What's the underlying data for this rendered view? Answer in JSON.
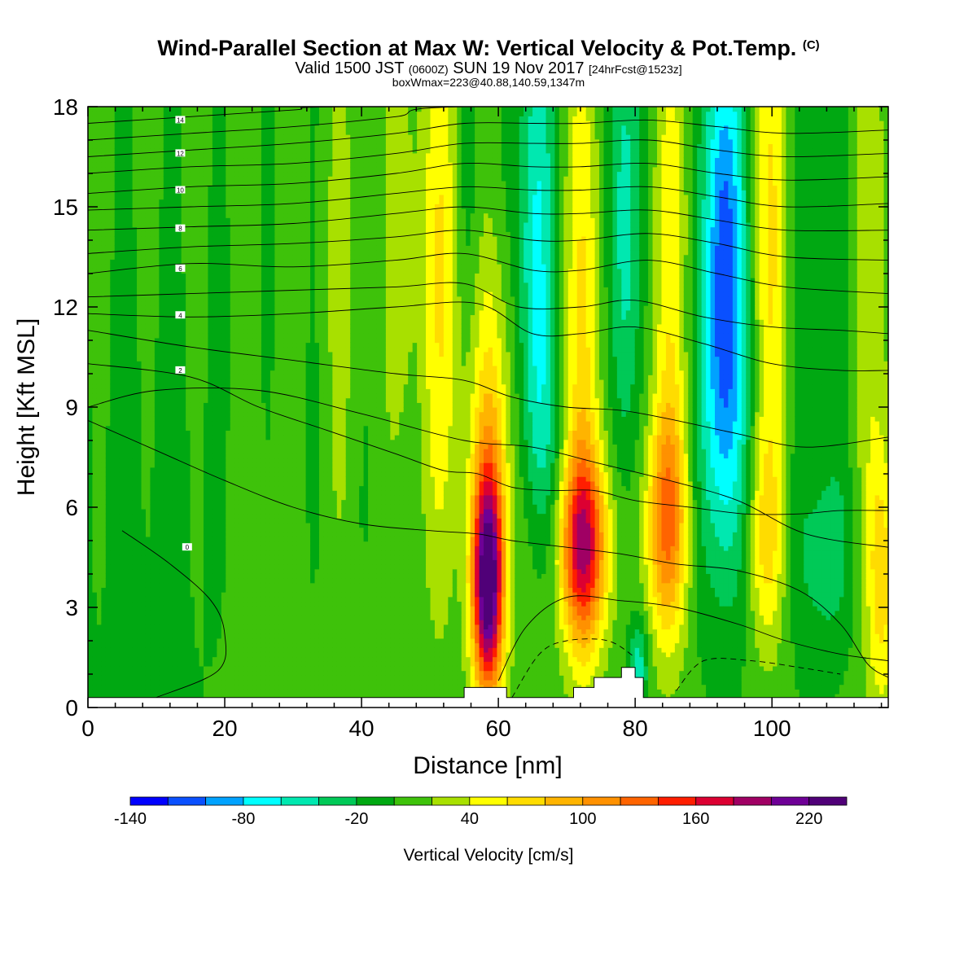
{
  "header": {
    "title": "Wind-Parallel Section at Max W: Vertical Velocity & Pot.Temp.",
    "copyright": "(C)",
    "valid_prefix": "Valid 1500 JST",
    "valid_zulu": "(0600Z)",
    "valid_date": "SUN 19 Nov 2017",
    "forecast": "[24hrFcst@1523z]",
    "box_info": "boxWmax=223@40.88,140.59,1347m"
  },
  "chart_data": {
    "type": "heatmap",
    "xlabel": "Distance [nm]",
    "ylabel": "Height [Kft MSL]",
    "xlim": [
      0,
      117
    ],
    "ylim": [
      0,
      18
    ],
    "x_ticks": [
      "0",
      "20",
      "40",
      "60",
      "80",
      "100"
    ],
    "y_ticks": [
      "0",
      "3",
      "6",
      "9",
      "12",
      "15",
      "18"
    ],
    "colorbar": {
      "title": "Vertical Velocity [cm/s]",
      "labels": [
        "-140",
        "-80",
        "-20",
        "40",
        "100",
        "160",
        "220"
      ],
      "range": [
        -140,
        240
      ],
      "step": 20,
      "colors": [
        "#0000ff",
        "#0a50ff",
        "#00a2ff",
        "#00ffff",
        "#00e8b0",
        "#00c957",
        "#00a812",
        "#3ec20a",
        "#a8e000",
        "#ffff00",
        "#ffdc00",
        "#ffb400",
        "#ff9100",
        "#ff6400",
        "#ff1e00",
        "#dc0032",
        "#a00064",
        "#6e0096",
        "#500078"
      ]
    },
    "terrain": [
      [
        0,
        0.3
      ],
      [
        55,
        0.3
      ],
      [
        55,
        0.6
      ],
      [
        60,
        0.6
      ],
      [
        60,
        0.6
      ],
      [
        61.2,
        0.6
      ],
      [
        61.2,
        0.3
      ],
      [
        71,
        0.3
      ],
      [
        71,
        0.6
      ],
      [
        74,
        0.6
      ],
      [
        74,
        0.9
      ],
      [
        78,
        0.9
      ],
      [
        78,
        1.2
      ],
      [
        80,
        1.2
      ],
      [
        80,
        0.9
      ],
      [
        81.2,
        0.9
      ],
      [
        81.2,
        0.3
      ],
      [
        117,
        0.3
      ]
    ],
    "w_sources": [
      {
        "x": 58.5,
        "z": 3.7,
        "sx": 1.6,
        "sz": 2.4,
        "a": 235
      },
      {
        "x": 59,
        "z": 8.5,
        "sx": 2.2,
        "sz": 3.5,
        "a": 60
      },
      {
        "x": 72.5,
        "z": 4.8,
        "sx": 2.5,
        "sz": 2.0,
        "a": 150
      },
      {
        "x": 72.5,
        "z": 11,
        "sx": 2.0,
        "sz": 7.0,
        "a": 55
      },
      {
        "x": 84.5,
        "z": 5.5,
        "sx": 2.2,
        "sz": 2.4,
        "a": 105
      },
      {
        "x": 85,
        "z": 13,
        "sx": 2.0,
        "sz": 6.0,
        "a": 45
      },
      {
        "x": 52,
        "z": 13,
        "sx": 2.2,
        "sz": 6.5,
        "a": 55
      },
      {
        "x": 46,
        "z": 14,
        "sx": 1.6,
        "sz": 5.0,
        "a": 30
      },
      {
        "x": 100,
        "z": 14,
        "sx": 2.0,
        "sz": 6.0,
        "a": 55
      },
      {
        "x": 99,
        "z": 5.0,
        "sx": 2.0,
        "sz": 2.2,
        "a": 50
      },
      {
        "x": 116,
        "z": 4.0,
        "sx": 1.6,
        "sz": 3.0,
        "a": 70
      },
      {
        "x": 115,
        "z": 14,
        "sx": 2.0,
        "sz": 5.0,
        "a": 30
      },
      {
        "x": 37,
        "z": 13,
        "sx": 2.0,
        "sz": 6.0,
        "a": 18
      },
      {
        "x": 24,
        "z": 4.0,
        "sx": 4.0,
        "sz": 5.0,
        "a": 12
      },
      {
        "x": 65,
        "z": 4.0,
        "sx": 2.0,
        "sz": 3.0,
        "a": 15
      },
      {
        "x": 65.5,
        "z": 13.5,
        "sx": 1.8,
        "sz": 6.0,
        "a": -75
      },
      {
        "x": 78.5,
        "z": 14.5,
        "sx": 1.6,
        "sz": 5.5,
        "a": -62
      },
      {
        "x": 80.5,
        "z": 1.2,
        "sx": 1.0,
        "sz": 1.0,
        "a": -60
      },
      {
        "x": 93,
        "z": 14.5,
        "sx": 2.0,
        "sz": 5.0,
        "a": -105
      },
      {
        "x": 93,
        "z": 8.5,
        "sx": 2.8,
        "sz": 4.0,
        "a": -55
      },
      {
        "x": 55.5,
        "z": 15.5,
        "sx": 1.4,
        "sz": 4.0,
        "a": -25
      },
      {
        "x": 106,
        "z": 12,
        "sx": 2.5,
        "sz": 8.0,
        "a": -20
      },
      {
        "x": 10,
        "z": 5.5,
        "sx": 12.0,
        "sz": 6.0,
        "a": -12
      },
      {
        "x": 108,
        "z": 4.5,
        "sx": 3.0,
        "sz": 1.8,
        "a": -30
      },
      {
        "x": 67,
        "z": 8.0,
        "sx": 2.0,
        "sz": 2.5,
        "a": -20
      }
    ],
    "isentropes": [
      {
        "label": "0",
        "pts": [
          [
            5,
            5.3
          ],
          [
            12,
            4.3
          ],
          [
            18,
            3.2
          ],
          [
            20,
            2.2
          ],
          [
            19,
            1.1
          ],
          [
            10,
            0.3
          ]
        ]
      },
      {
        "label": "",
        "pts": [
          [
            0,
            8.6
          ],
          [
            10,
            7.7
          ],
          [
            20,
            6.8
          ],
          [
            30,
            6.0
          ],
          [
            40,
            5.5
          ],
          [
            50,
            5.3
          ],
          [
            57,
            5.2
          ],
          [
            62,
            5.0
          ],
          [
            70,
            4.8
          ],
          [
            78,
            4.6
          ],
          [
            86,
            4.3
          ],
          [
            95,
            4.1
          ],
          [
            104,
            3.5
          ],
          [
            110,
            2.5
          ],
          [
            114,
            1.3
          ],
          [
            117,
            0.9
          ]
        ]
      },
      {
        "label": "",
        "pts": [
          [
            60,
            0.8
          ],
          [
            64,
            2.4
          ],
          [
            70,
            3.3
          ],
          [
            78,
            3.2
          ],
          [
            86,
            3.0
          ],
          [
            95,
            2.5
          ],
          [
            102,
            2.0
          ],
          [
            110,
            1.6
          ],
          [
            117,
            1.4
          ]
        ]
      },
      {
        "label": "2",
        "pts": [
          [
            0,
            10.3
          ],
          [
            15,
            9.9
          ],
          [
            25,
            9.0
          ],
          [
            35,
            8.3
          ],
          [
            45,
            7.6
          ],
          [
            52,
            7.1
          ],
          [
            57,
            7.0
          ],
          [
            62,
            6.6
          ],
          [
            68,
            6.5
          ],
          [
            74,
            6.5
          ],
          [
            80,
            6.2
          ],
          [
            88,
            6.0
          ],
          [
            96,
            5.8
          ],
          [
            104,
            5.8
          ],
          [
            110,
            5.9
          ],
          [
            117,
            5.9
          ]
        ]
      },
      {
        "label": "",
        "pts": [
          [
            0,
            9.0
          ],
          [
            10,
            9.5
          ],
          [
            25,
            9.5
          ],
          [
            40,
            8.8
          ],
          [
            55,
            8.0
          ],
          [
            65,
            7.8
          ],
          [
            75,
            7.3
          ],
          [
            85,
            6.8
          ],
          [
            95,
            6.2
          ],
          [
            105,
            5.2
          ],
          [
            117,
            4.8
          ]
        ]
      },
      {
        "label": "",
        "pts": [
          [
            0,
            11.3
          ],
          [
            15,
            10.8
          ],
          [
            30,
            10.4
          ],
          [
            45,
            10.0
          ],
          [
            55,
            9.8
          ],
          [
            62,
            9.3
          ],
          [
            70,
            9.0
          ],
          [
            78,
            8.9
          ],
          [
            86,
            8.6
          ],
          [
            95,
            8.2
          ],
          [
            105,
            7.8
          ],
          [
            117,
            8.1
          ]
        ]
      },
      {
        "label": "4",
        "pts": [
          [
            0,
            11.8
          ],
          [
            15,
            11.7
          ],
          [
            30,
            11.8
          ],
          [
            45,
            12.0
          ],
          [
            57,
            12.1
          ],
          [
            65,
            11.2
          ],
          [
            72,
            11.2
          ],
          [
            80,
            11.4
          ],
          [
            90,
            10.9
          ],
          [
            100,
            10.3
          ],
          [
            110,
            10.1
          ],
          [
            117,
            10.1
          ]
        ]
      },
      {
        "label": "",
        "pts": [
          [
            0,
            12.3
          ],
          [
            15,
            12.4
          ],
          [
            30,
            12.5
          ],
          [
            45,
            12.6
          ],
          [
            55,
            12.7
          ],
          [
            63,
            12.0
          ],
          [
            72,
            12.0
          ],
          [
            80,
            12.2
          ],
          [
            90,
            11.7
          ],
          [
            100,
            11.4
          ],
          [
            110,
            11.3
          ],
          [
            117,
            11.2
          ]
        ]
      },
      {
        "label": "6",
        "pts": [
          [
            0,
            13.0
          ],
          [
            15,
            13.3
          ],
          [
            30,
            13.2
          ],
          [
            45,
            13.4
          ],
          [
            55,
            13.6
          ],
          [
            65,
            13.1
          ],
          [
            72,
            13.1
          ],
          [
            82,
            13.4
          ],
          [
            92,
            13.0
          ],
          [
            102,
            12.6
          ],
          [
            117,
            12.4
          ]
        ]
      },
      {
        "label": "",
        "pts": [
          [
            0,
            13.6
          ],
          [
            15,
            13.8
          ],
          [
            30,
            13.9
          ],
          [
            45,
            14.1
          ],
          [
            55,
            14.3
          ],
          [
            65,
            14.0
          ],
          [
            72,
            14.0
          ],
          [
            82,
            14.2
          ],
          [
            92,
            13.9
          ],
          [
            102,
            13.5
          ],
          [
            117,
            13.4
          ]
        ]
      },
      {
        "label": "8",
        "pts": [
          [
            0,
            14.3
          ],
          [
            15,
            14.4
          ],
          [
            30,
            14.5
          ],
          [
            45,
            14.8
          ],
          [
            55,
            15.0
          ],
          [
            65,
            14.8
          ],
          [
            72,
            14.8
          ],
          [
            82,
            14.9
          ],
          [
            92,
            14.6
          ],
          [
            102,
            14.3
          ],
          [
            117,
            14.3
          ]
        ]
      },
      {
        "label": "",
        "pts": [
          [
            0,
            14.9
          ],
          [
            15,
            15.0
          ],
          [
            30,
            15.1
          ],
          [
            45,
            15.4
          ],
          [
            55,
            15.6
          ],
          [
            65,
            15.5
          ],
          [
            72,
            15.5
          ],
          [
            82,
            15.6
          ],
          [
            92,
            15.3
          ],
          [
            102,
            15.0
          ],
          [
            117,
            15.1
          ]
        ]
      },
      {
        "label": "10",
        "pts": [
          [
            0,
            15.4
          ],
          [
            15,
            15.6
          ],
          [
            30,
            15.7
          ],
          [
            45,
            16.0
          ],
          [
            55,
            16.3
          ],
          [
            65,
            16.2
          ],
          [
            72,
            16.2
          ],
          [
            82,
            16.3
          ],
          [
            92,
            16.0
          ],
          [
            102,
            15.8
          ],
          [
            117,
            15.9
          ]
        ]
      },
      {
        "label": "",
        "pts": [
          [
            0,
            16.0
          ],
          [
            15,
            16.2
          ],
          [
            30,
            16.3
          ],
          [
            45,
            16.6
          ],
          [
            55,
            16.9
          ],
          [
            65,
            16.9
          ],
          [
            72,
            16.9
          ],
          [
            82,
            17.0
          ],
          [
            92,
            16.7
          ],
          [
            102,
            16.5
          ],
          [
            117,
            16.6
          ]
        ]
      },
      {
        "label": "12",
        "pts": [
          [
            0,
            16.5
          ],
          [
            15,
            16.7
          ],
          [
            30,
            16.9
          ],
          [
            45,
            17.2
          ],
          [
            55,
            17.5
          ],
          [
            65,
            17.5
          ],
          [
            72,
            17.5
          ],
          [
            82,
            17.6
          ],
          [
            92,
            17.4
          ],
          [
            102,
            17.2
          ],
          [
            117,
            17.3
          ]
        ]
      },
      {
        "label": "",
        "pts": [
          [
            0,
            17.0
          ],
          [
            15,
            17.2
          ],
          [
            30,
            17.4
          ],
          [
            45,
            17.7
          ],
          [
            55,
            18.0
          ],
          [
            117,
            18.0
          ]
        ]
      },
      {
        "label": "14",
        "pts": [
          [
            0,
            17.5
          ],
          [
            15,
            17.7
          ],
          [
            30,
            17.9
          ],
          [
            40,
            18.0
          ],
          [
            117,
            18.0
          ]
        ]
      }
    ],
    "dashed": [
      {
        "pts": [
          [
            62,
            0.3
          ],
          [
            66,
            1.6
          ],
          [
            70,
            2.0
          ],
          [
            76,
            2.0
          ],
          [
            80,
            1.5
          ]
        ]
      },
      {
        "pts": [
          [
            86,
            0.5
          ],
          [
            90,
            1.4
          ],
          [
            97,
            1.4
          ],
          [
            104,
            1.2
          ],
          [
            110,
            1.0
          ]
        ]
      }
    ]
  }
}
